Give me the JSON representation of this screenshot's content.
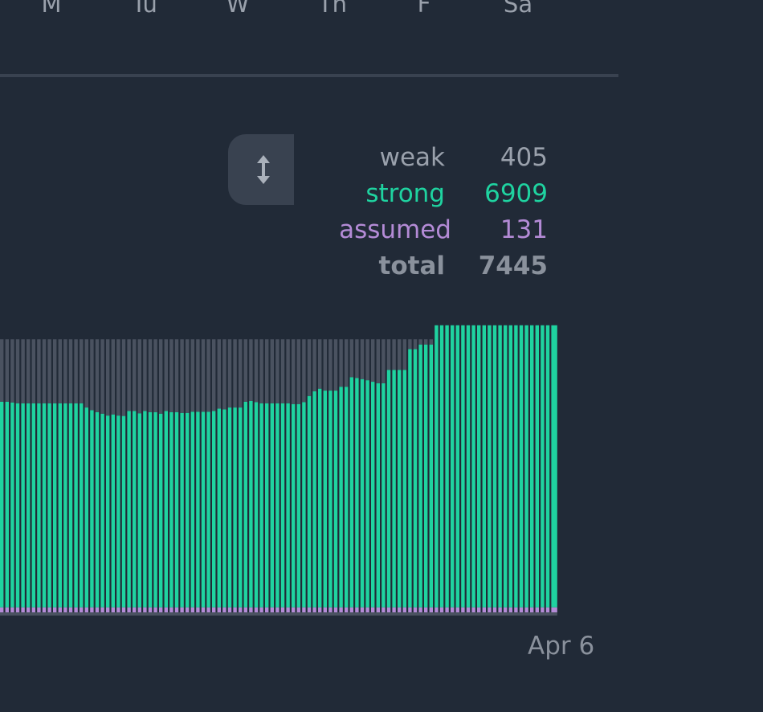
{
  "weekdays": [
    "M",
    "Tu",
    "W",
    "Th",
    "F",
    "Sa"
  ],
  "legend": [
    {
      "label": "weak",
      "value": "405",
      "key": "weak"
    },
    {
      "label": "strong",
      "value": "6909",
      "key": "strong"
    },
    {
      "label": "assumed",
      "value": "131",
      "key": "assumed"
    },
    {
      "label": "total",
      "value": "7445",
      "key": "total"
    }
  ],
  "toggle": {
    "icon": "vertical-resize-arrow-icon"
  },
  "colors": {
    "background": "#212a37",
    "weak": "#4a5260",
    "strong": "#1fd3a0",
    "assumed": "#b48bd6",
    "axis": "#4a5260"
  },
  "chart_data": {
    "type": "bar",
    "stacked": true,
    "x_end_label": "Apr 6",
    "ylim": [
      0,
      7445
    ],
    "series": [
      {
        "name": "assumed",
        "values": [
          131,
          131,
          131,
          131,
          131,
          131,
          131,
          131,
          131,
          131,
          131,
          131,
          131,
          131,
          131,
          131,
          131,
          131,
          131,
          131,
          131,
          131,
          131,
          131,
          131,
          131,
          131,
          131,
          131,
          131,
          131,
          131,
          131,
          131,
          131,
          131,
          131,
          131,
          131,
          131,
          131,
          131,
          131,
          131,
          131,
          131,
          131,
          131,
          131,
          131,
          131,
          131,
          131,
          131,
          131,
          131,
          131,
          131,
          131,
          131,
          131,
          131,
          131,
          131,
          131,
          131,
          131,
          131,
          131,
          131,
          131,
          131,
          131,
          131,
          131,
          131,
          131,
          131,
          131,
          131,
          131,
          131,
          131,
          131,
          131,
          131,
          131,
          131,
          131,
          131,
          131,
          131,
          131,
          131,
          131,
          131,
          131,
          131,
          131,
          131,
          131,
          131,
          131,
          131,
          131
        ]
      },
      {
        "name": "strong",
        "values": [
          5350,
          5350,
          5330,
          5310,
          5310,
          5310,
          5310,
          5310,
          5310,
          5310,
          5310,
          5310,
          5310,
          5310,
          5310,
          5310,
          5200,
          5130,
          5080,
          5040,
          4990,
          5020,
          4990,
          4980,
          5110,
          5110,
          5050,
          5110,
          5080,
          5080,
          5040,
          5110,
          5080,
          5080,
          5060,
          5060,
          5090,
          5090,
          5090,
          5090,
          5110,
          5170,
          5150,
          5200,
          5200,
          5200,
          5350,
          5370,
          5340,
          5310,
          5310,
          5310,
          5310,
          5310,
          5310,
          5290,
          5290,
          5340,
          5500,
          5620,
          5690,
          5640,
          5640,
          5640,
          5740,
          5740,
          5990,
          5970,
          5940,
          5910,
          5870,
          5830,
          5830,
          6180,
          6180,
          6180,
          6180,
          6720,
          6720,
          6840,
          6840,
          6840,
          7340,
          7340,
          7340,
          7340,
          7340,
          7340,
          7340,
          7340,
          7340,
          7340,
          7340,
          7340,
          7340,
          7340,
          7340,
          7340,
          7340,
          7340,
          7340,
          7340,
          7340,
          7340,
          7340
        ]
      },
      {
        "name": "weak",
        "values": [
          1625,
          1625,
          1645,
          1665,
          1665,
          1665,
          1665,
          1665,
          1665,
          1665,
          1665,
          1665,
          1665,
          1665,
          1665,
          1665,
          1775,
          1845,
          1895,
          1935,
          1985,
          1955,
          1985,
          1995,
          1865,
          1865,
          1925,
          1865,
          1895,
          1895,
          1935,
          1865,
          1895,
          1895,
          1915,
          1915,
          1885,
          1885,
          1885,
          1885,
          1865,
          1805,
          1825,
          1775,
          1775,
          1775,
          1625,
          1605,
          1635,
          1665,
          1665,
          1665,
          1665,
          1665,
          1665,
          1685,
          1685,
          1635,
          1475,
          1355,
          1285,
          1335,
          1335,
          1335,
          1235,
          1235,
          985,
          1005,
          1035,
          1065,
          1105,
          1145,
          1145,
          795,
          795,
          795,
          795,
          255,
          255,
          135,
          135,
          135,
          0,
          0,
          0,
          0,
          0,
          0,
          0,
          0,
          0,
          0,
          0,
          0,
          0,
          0,
          0,
          0,
          0,
          0,
          0,
          0,
          0,
          0,
          0
        ]
      }
    ]
  }
}
